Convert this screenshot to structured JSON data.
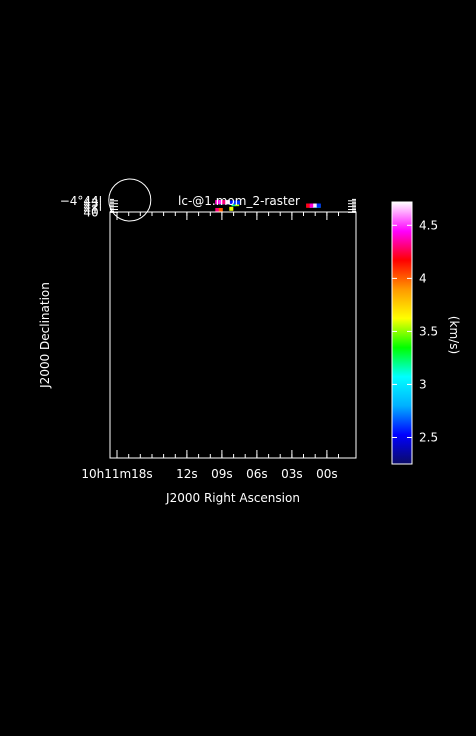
{
  "chart_data": {
    "type": "heatmap",
    "title": "lc-@1.mom_2-raster",
    "xlabel": "J2000 Right Ascension",
    "ylabel": "J2000 Declination",
    "colorbar_label": "(km/s)",
    "xlim": [
      18.6,
      -2.5
    ],
    "ylim": [
      -44.7,
      40.15
    ],
    "x_tick_labels": [
      "10h11m18s",
      "12s",
      "09s",
      "06s",
      "03s",
      "00s"
    ],
    "x_ticks": [
      18.0,
      12.0,
      9.0,
      6.0,
      3.0,
      0.0
    ],
    "y_tick_labels": [
      "40'",
      "41'",
      "42'",
      "43'",
      "−4°44'"
    ],
    "y_ticks": [
      40.0,
      41.0,
      42.0,
      43.0,
      44.0
    ],
    "colorbar": {
      "range": [
        2.25,
        4.72
      ],
      "tick_values": [
        2.5,
        3.0,
        3.5,
        4.0,
        4.5
      ],
      "tick_labels": [
        "2.5",
        "3",
        "3.5",
        "4",
        "4.5"
      ],
      "colormap": [
        "#0b0b66",
        "#0000ff",
        "#00b0ff",
        "#00ffff",
        "#00ff00",
        "#ffff00",
        "#ff9900",
        "#ff0000",
        "#ff00ff",
        "#ffffff"
      ]
    },
    "pixels": [
      {
        "ra": 9.4,
        "dec": 40.85,
        "v": 4.3
      },
      {
        "ra": 9.1,
        "dec": 40.85,
        "v": 4.0
      },
      {
        "ra": 8.2,
        "dec": 41.25,
        "v": 3.6
      },
      {
        "ra": 1.6,
        "dec": 42.3,
        "v": 4.1
      },
      {
        "ra": 1.3,
        "dec": 42.3,
        "v": 4.6
      },
      {
        "ra": 1.0,
        "dec": 42.3,
        "v": 3.0
      },
      {
        "ra": 0.7,
        "dec": 42.3,
        "v": 2.85
      },
      {
        "ra": 1.6,
        "dec": 42.38,
        "v": 4.2
      },
      {
        "ra": 1.3,
        "dec": 42.38,
        "v": 4.4
      },
      {
        "ra": 1.0,
        "dec": 42.38,
        "v": 4.7
      },
      {
        "ra": 0.7,
        "dec": 42.38,
        "v": 2.6
      },
      {
        "ra": 8.0,
        "dec": 42.85,
        "v": 3.1
      },
      {
        "ra": 7.7,
        "dec": 42.85,
        "v": 3.4
      },
      {
        "ra": 8.0,
        "dec": 42.93,
        "v": 3.2
      },
      {
        "ra": 7.7,
        "dec": 42.93,
        "v": 3.4
      },
      {
        "ra": 7.7,
        "dec": 43.02,
        "v": 3.6
      },
      {
        "ra": 9.4,
        "dec": 43.42,
        "v": 2.6
      },
      {
        "ra": 9.1,
        "dec": 43.42,
        "v": 2.9
      },
      {
        "ra": 8.8,
        "dec": 43.42,
        "v": 2.85
      },
      {
        "ra": 8.5,
        "dec": 43.42,
        "v": 2.7
      },
      {
        "ra": 8.2,
        "dec": 43.42,
        "v": 2.55
      },
      {
        "ra": 7.9,
        "dec": 43.42,
        "v": 2.6
      },
      {
        "ra": 7.6,
        "dec": 43.42,
        "v": 2.6
      },
      {
        "ra": 9.4,
        "dec": 43.5,
        "v": 4.2
      },
      {
        "ra": 9.1,
        "dec": 43.5,
        "v": 3.0
      },
      {
        "ra": 8.8,
        "dec": 43.5,
        "v": 4.3
      },
      {
        "ra": 8.5,
        "dec": 43.5,
        "v": 4.6
      },
      {
        "ra": 9.4,
        "dec": 43.58,
        "v": 4.4
      },
      {
        "ra": 9.1,
        "dec": 43.58,
        "v": 4.5
      },
      {
        "ra": 8.8,
        "dec": 43.58,
        "v": 4.3
      },
      {
        "ra": 8.5,
        "dec": 43.58,
        "v": 4.7
      }
    ],
    "beam": {
      "ra": 16.9,
      "dec": 44.28,
      "radius": 0.09
    }
  }
}
